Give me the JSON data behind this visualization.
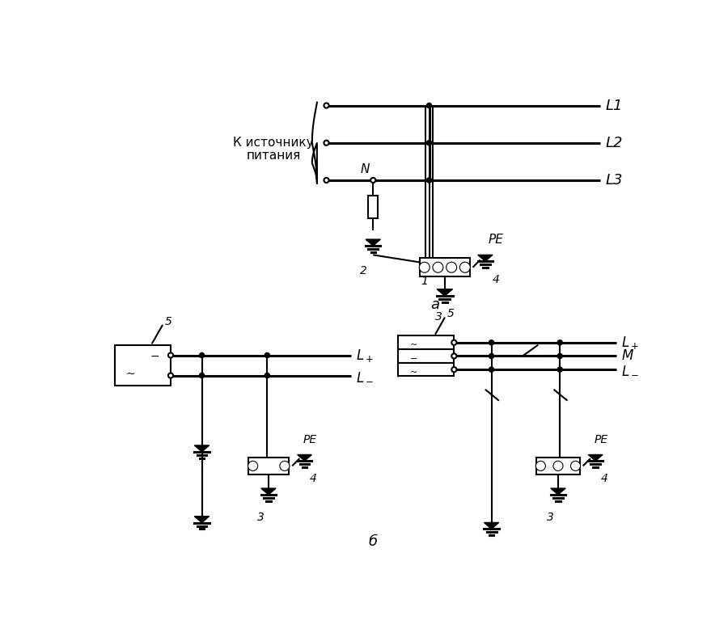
{
  "bg_color": "#ffffff",
  "lw": 1.5,
  "lw2": 2.2,
  "fig_width": 9.0,
  "fig_height": 7.67,
  "label_a": "а",
  "label_b": "б",
  "text_source_line1": "К источнику",
  "text_source_line2": "питания",
  "label_N": "N",
  "label_PE": "PE",
  "label_1": "1",
  "label_2": "2",
  "label_3": "3",
  "label_4": "4",
  "label_5": "5",
  "label_L1": "L1",
  "label_L2": "L2",
  "label_L3": "L3",
  "label_Lplus": "L+",
  "label_Lminus": "L−",
  "label_M": "M"
}
